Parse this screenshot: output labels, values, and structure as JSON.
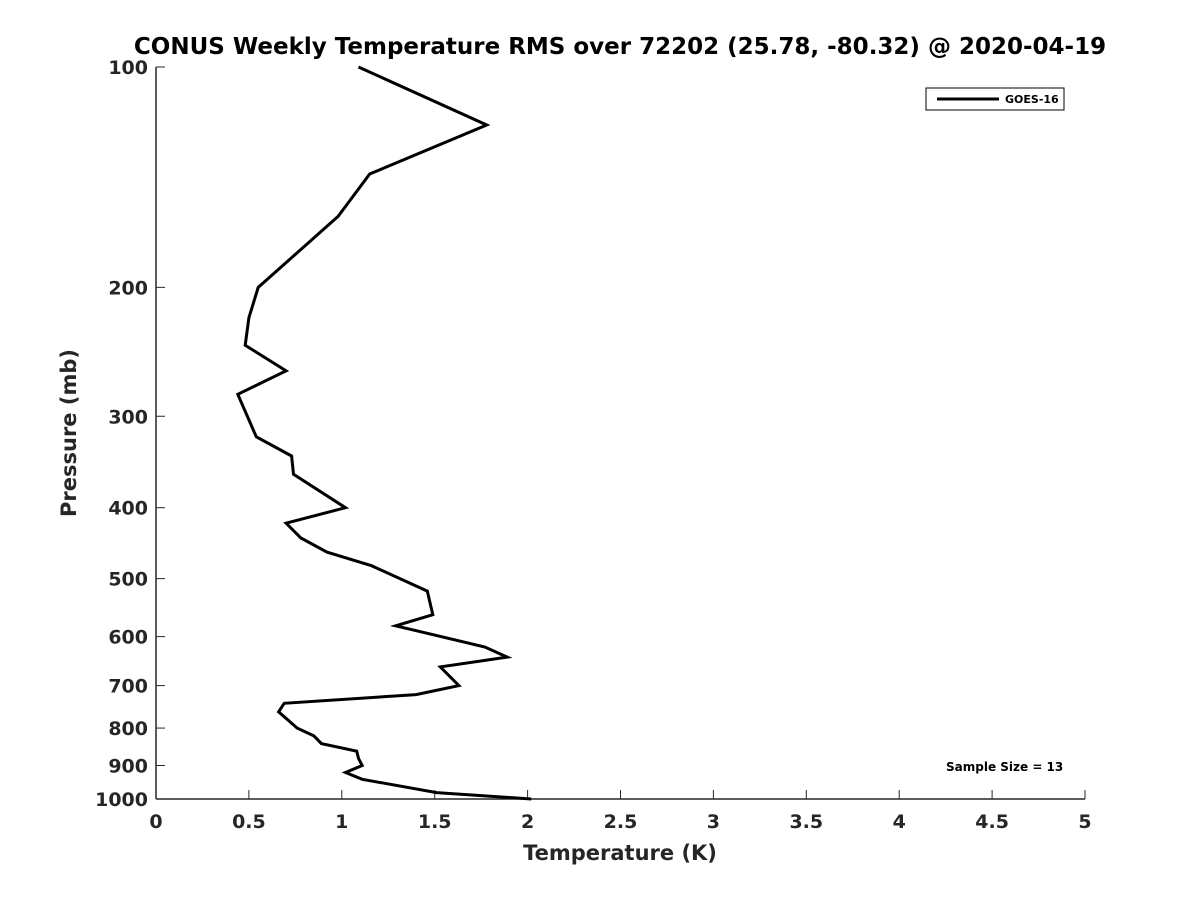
{
  "chart_data": {
    "type": "line",
    "title": "CONUS Weekly Temperature RMS over 72202 (25.78, -80.32) @ 2020-04-19",
    "xlabel": "Temperature (K)",
    "ylabel": "Pressure (mb)",
    "xlim": [
      0,
      5
    ],
    "ylim": [
      100,
      1000
    ],
    "yscale": "log",
    "y_reversed": true,
    "xticks": [
      "0",
      "0.5",
      "1",
      "1.5",
      "2",
      "2.5",
      "3",
      "3.5",
      "4",
      "4.5",
      "5"
    ],
    "yticks": [
      "100",
      "200",
      "300",
      "400",
      "500",
      "600",
      "700",
      "800",
      "900",
      "1000"
    ],
    "legend": {
      "placement": "top-right",
      "entries": [
        "GOES-16"
      ]
    },
    "annotation": "Sample Size = 13",
    "series": [
      {
        "name": "GOES-16",
        "color": "#000000",
        "x": [
          1.09,
          1.78,
          1.15,
          0.98,
          0.55,
          0.5,
          0.48,
          0.7,
          0.44,
          0.54,
          0.73,
          0.74,
          1.02,
          0.7,
          0.78,
          0.92,
          1.16,
          1.46,
          1.49,
          1.29,
          1.77,
          1.89,
          1.53,
          1.63,
          1.4,
          0.69,
          0.66,
          0.76,
          0.85,
          0.89,
          1.08,
          1.09,
          1.11,
          1.02,
          1.11,
          1.51,
          2.02
        ],
        "y": [
          100,
          120,
          140,
          160,
          200,
          220,
          240,
          260,
          280,
          320,
          340,
          360,
          400,
          420,
          440,
          460,
          480,
          520,
          560,
          580,
          620,
          640,
          660,
          700,
          720,
          740,
          760,
          800,
          820,
          840,
          860,
          880,
          900,
          920,
          940,
          980,
          1000
        ]
      }
    ]
  }
}
